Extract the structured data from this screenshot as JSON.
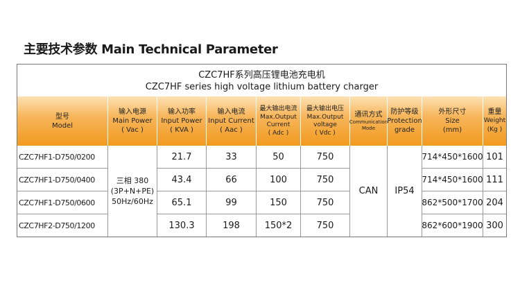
{
  "heading": "主要技术参数 Main Technical Parameter",
  "table": {
    "title_cn": "CZC7HF系列高压锂电池充电机",
    "title_en": "CZC7HF series high voltage lithium battery charger",
    "headers": [
      {
        "cn": "型号",
        "en": "Model"
      },
      {
        "cn": "输入电源",
        "en": "Main Power",
        "unit": "( Vac )"
      },
      {
        "cn": "输入功率",
        "en": "Input Power",
        "unit": "( KVA )"
      },
      {
        "cn": "输入电流",
        "en": "Input Current",
        "unit": "( Aac )"
      },
      {
        "cn": "最大输出电流",
        "en": "Max.Output Current",
        "unit": "( Adc )"
      },
      {
        "cn": "最大输出电压",
        "en": "Max.Output voltage",
        "unit": "( Vdc )"
      },
      {
        "cn": "通讯方式",
        "en": "Communication Mode"
      },
      {
        "cn": "防护等级",
        "en": "Protection grade"
      },
      {
        "cn": "外形尺寸",
        "en": "Size",
        "unit": "(mm)"
      },
      {
        "cn": "重量",
        "en": "Weight",
        "unit": "(Kg )"
      }
    ],
    "rows": [
      {
        "model": "CZC7HF1-D750/0200",
        "power": "21.7",
        "current": "33",
        "out_current": "50",
        "out_voltage": "750",
        "size": "714*450*1600",
        "weight": "101"
      },
      {
        "model": "CZC7HF1-D750/0400",
        "power": "43.4",
        "current": "66",
        "out_current": "100",
        "out_voltage": "750",
        "size": "714*450*1600",
        "weight": "111"
      },
      {
        "model": "CZC7HF1-D750/0600",
        "power": "65.1",
        "current": "99",
        "out_current": "150",
        "out_voltage": "750",
        "size": "862*500*1700",
        "weight": "204"
      },
      {
        "model": "CZC7HF2-D750/1200",
        "power": "130.3",
        "current": "198",
        "out_current": "150*2",
        "out_voltage": "750",
        "size": "862*600*1900",
        "weight": "300"
      }
    ],
    "main_power": {
      "line1": "三相 380",
      "line2": "(3P+N+PE)",
      "line3": "50Hz/60Hz"
    },
    "communication": "CAN",
    "protection": "IP54"
  }
}
